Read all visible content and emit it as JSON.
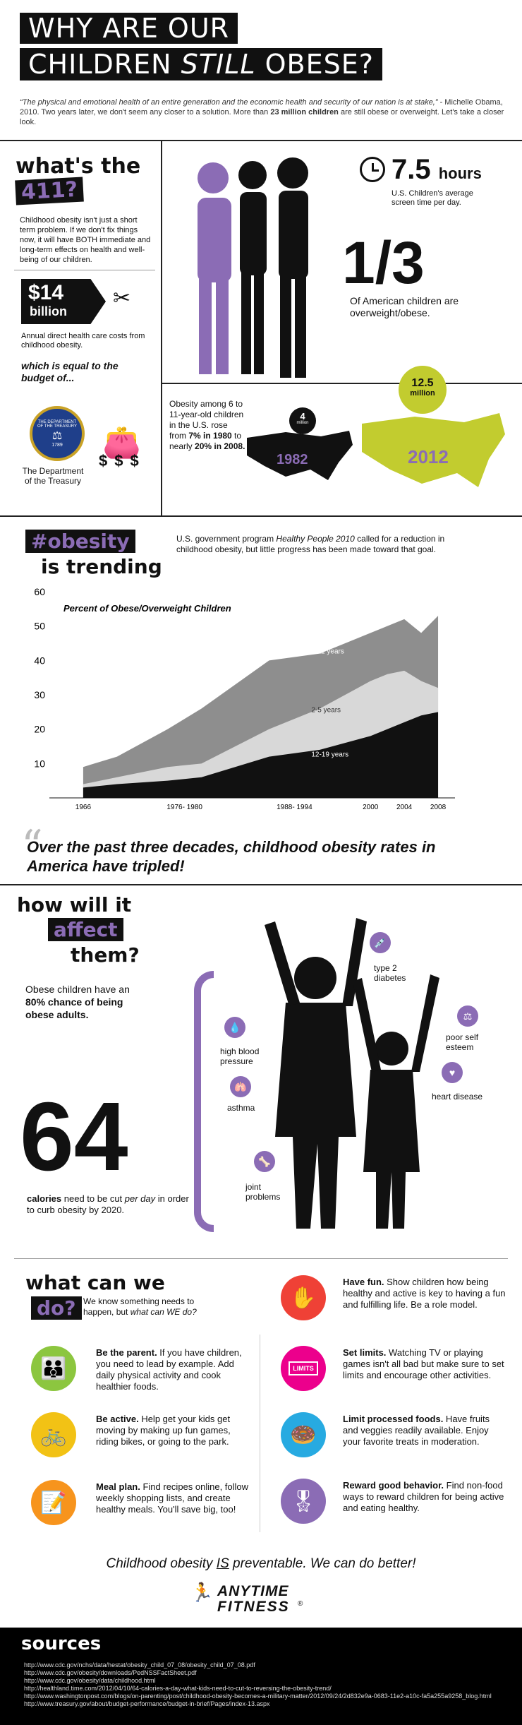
{
  "header": {
    "title_line1": "WHY ARE OUR",
    "title_line2_a": "CHILDREN ",
    "title_line2_b": "STILL",
    "title_line2_c": " OBESE?",
    "quote": "“The physical and emotional health of an entire generation and the economic health and security of our nation is at stake,”",
    "quote_attr": " - Michelle Obama, 2010. Two years later, we don't seem any closer to a solution. More than ",
    "quote_bold": "23 million children",
    "quote_tail": " are still obese or overweight. Let's take a closer look."
  },
  "s411": {
    "heading_a": "what's the",
    "heading_b": "411?",
    "text": "Childhood obesity isn't just a short term problem. If we don't fix things now, it will have BOTH immediate and long-term effects on health and well-being of our children.",
    "cost": "$14",
    "cost_unit": "billion",
    "cost_text": "Annual direct health care costs from childhood obesity.",
    "equal": "which is equal to the budget of...",
    "treasury": "The Department of the Treasury",
    "seal_text": "THE DEPARTMENT OF THE TREASURY",
    "seal_year": "1789"
  },
  "stats": {
    "hours": "7.5",
    "hours_unit": "hours",
    "hours_text": "U.S. Children's average screen time per day.",
    "fraction": "1/3",
    "fraction_text": "Of American children are overweight/obese.",
    "map_text_a": "Obesity among 6 to 11-year-old children in the U.S. rose from ",
    "map_text_b": "7% in 1980",
    "map_text_c": " to nearly ",
    "map_text_d": "20% in 2008.",
    "y1982": "1982",
    "y2012": "2012",
    "b1": "4",
    "b1u": "million",
    "b2": "12.5",
    "b2u": "million"
  },
  "trend": {
    "tag": "#obesity",
    "tag2": "is trending",
    "desc_a": "U.S. government program ",
    "desc_b": "Healthy People 2010",
    "desc_c": " called for a reduction in childhood obesity, but little progress  has been made toward that goal."
  },
  "chart_data": {
    "type": "area",
    "title": "Percent of Obese/Overweight Children",
    "x": [
      1966,
      1970,
      1976,
      1980,
      1988,
      1994,
      2000,
      2002,
      2004,
      2006,
      2008
    ],
    "x_tick_labels": [
      "1966",
      "1976- 1980",
      "1988- 1994",
      "2000",
      "2004",
      "2008"
    ],
    "y_ticks": [
      "10",
      "20",
      "30",
      "40",
      "50",
      "60"
    ],
    "ylim": [
      0,
      60
    ],
    "series": [
      {
        "name": "6-11 years",
        "values": [
          9,
          12,
          20,
          26,
          40,
          42,
          48,
          50,
          52,
          48,
          53
        ]
      },
      {
        "name": "2-5 years",
        "values": [
          4,
          6,
          9,
          10,
          20,
          26,
          34,
          36,
          37,
          34,
          32
        ]
      },
      {
        "name": "12-19 years",
        "values": [
          3,
          4,
          5,
          6,
          12,
          14,
          18,
          20,
          22,
          24,
          25
        ]
      }
    ],
    "series_colors": [
      "#8e8e8e",
      "#d8d8d8",
      "#111111"
    ]
  },
  "pull": {
    "quote": "Over the past three decades, childhood obesity rates in America have tripled!"
  },
  "affect": {
    "h_a": "how will it",
    "h_b": "affect",
    "h_c": "them?",
    "text_a": "Obese children have an ",
    "text_b": "80% chance of being obese adults.",
    "big": "64",
    "cal_a": "calories",
    "cal_b": " need to be cut ",
    "cal_c": "per day",
    "cal_d": " in order to curb obesity by 2020.",
    "labels": [
      "type 2 diabetes",
      "high blood pressure",
      "poor self esteem",
      "asthma",
      "heart disease",
      "joint problems"
    ]
  },
  "whatcan": {
    "h_a": "what can we",
    "h_b": "do?",
    "sub_a": "We know something needs to happen, but ",
    "sub_b": "what can WE do?",
    "left": [
      {
        "title": "Be the parent.",
        "text": " If you have children, you need to lead by example. Add daily physical activity and cook healthier foods.",
        "color": "#8cc63f",
        "icon": "family-icon"
      },
      {
        "title": "Be active.",
        "text": " Help get your kids get moving by making up fun games, riding bikes, or going to the park.",
        "color": "#f2c215",
        "icon": "bicycle-icon"
      },
      {
        "title": "Meal plan.",
        "text": " Find recipes online, follow weekly shopping lists, and create healthy meals. You'll save big, too!",
        "color": "#f7941d",
        "icon": "notepad-icon"
      }
    ],
    "right": [
      {
        "title": "Have fun.",
        "text": " Show children how being healthy and active is key to having a fun and fulfilling life. Be a role model.",
        "color": "#ef4136",
        "icon": "hand-icon"
      },
      {
        "title": "Set limits.",
        "text": " Watching TV or playing games isn't all bad but make sure to set limits and encourage other activities.",
        "color": "#ec008c",
        "icon": "tv-icon",
        "tv": "LIMITS"
      },
      {
        "title": "Limit processed foods.",
        "text": " Have fruits and veggies readily available. Enjoy your favorite treats in moderation.",
        "color": "#27aae1",
        "icon": "donut-icon"
      },
      {
        "title": "Reward good behavior.",
        "text": " Find non-food ways to reward children for being active and eating healthy.",
        "color": "#8b6cb5",
        "icon": "ribbon-icon"
      }
    ],
    "closing_a": "Childhood obesity ",
    "closing_b": "IS",
    "closing_c": " preventable. We can do better!",
    "logo_a": "ANYTIME",
    "logo_b": "FITNESS",
    "logo_r": "®"
  },
  "sources": {
    "title": "sources",
    "list": [
      "http://www.cdc.gov/nchs/data/hestat/obesity_child_07_08/obesity_child_07_08.pdf",
      "http://www.cdc.gov/obesity/downloads/PedNSSFactSheet.pdf",
      "http://www.cdc.gov/obesity/data/childhood.html",
      "http://healthland.time.com/2012/04/10/64-calories-a-day-what-kids-need-to-cut-to-reversing-the-obesity-trend/",
      "http://www.washingtonpost.com/blogs/on-parenting/post/childhood-obesity-becomes-a-military-matter/2012/09/24/2d832e9a-0683-11e2-a10c-fa5a255a9258_blog.html",
      "http://www.treasury.gov/about/budget-performance/budget-in-brief/Pages/index-13.aspx"
    ]
  }
}
